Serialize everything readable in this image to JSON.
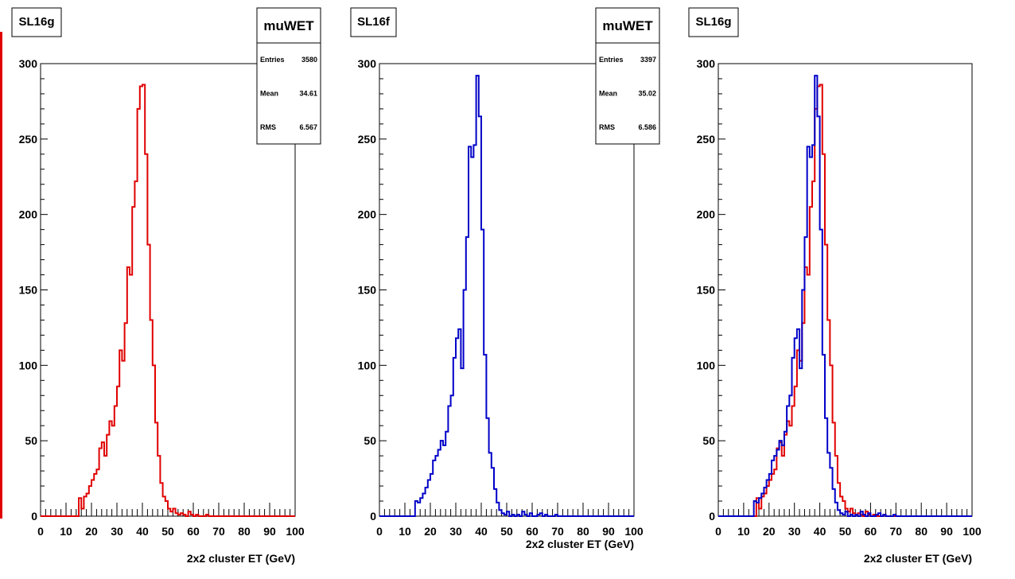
{
  "colors": {
    "sl16g": "#e00000",
    "sl16f": "#0000c8",
    "axis": "#000000",
    "edge_marker": "#e00000"
  },
  "chart_data": [
    {
      "type": "histogram",
      "title": "SL16g",
      "xlabel": "2x2 cluster ET (GeV)",
      "ylabel": "",
      "xlim": [
        0,
        100
      ],
      "ylim": [
        0,
        300
      ],
      "xticks": [
        "0",
        "10",
        "20",
        "30",
        "40",
        "50",
        "60",
        "70",
        "80",
        "90",
        "100"
      ],
      "yticks": [
        "0",
        "50",
        "100",
        "150",
        "200",
        "250",
        "300"
      ],
      "bin_width": 1,
      "stats": {
        "name": "muWET",
        "rows": [
          {
            "label": "Entries",
            "value": "3580"
          },
          {
            "label": "Mean",
            "value": "34.61"
          },
          {
            "label": "RMS",
            "value": "6.567"
          }
        ]
      },
      "series": [
        {
          "color_key": "sl16g",
          "values": [
            0,
            0,
            0,
            0,
            0,
            0,
            0,
            0,
            0,
            0,
            0,
            0,
            0,
            0,
            0,
            12,
            5,
            13,
            15,
            20,
            24,
            28,
            31,
            45,
            49,
            40,
            54,
            63,
            60,
            73,
            86,
            110,
            103,
            128,
            165,
            160,
            205,
            222,
            270,
            285,
            286,
            240,
            180,
            130,
            100,
            62,
            40,
            22,
            13,
            10,
            5,
            3,
            5,
            2,
            1,
            2,
            1,
            0,
            3,
            1,
            0,
            1,
            0,
            0,
            0,
            1,
            0,
            0,
            0,
            0,
            0,
            0,
            0,
            0,
            0,
            0,
            0,
            0,
            0,
            0,
            0,
            0,
            0,
            0,
            0,
            0,
            0,
            0,
            0,
            0,
            0,
            0,
            0,
            0,
            0,
            0,
            0,
            0,
            0,
            0
          ]
        }
      ]
    },
    {
      "type": "histogram",
      "title": "SL16f",
      "xlabel": "2x2 cluster ET (GeV)",
      "ylabel": "",
      "xlim": [
        0,
        100
      ],
      "ylim": [
        0,
        300
      ],
      "xticks": [
        "0",
        "10",
        "20",
        "30",
        "40",
        "50",
        "60",
        "70",
        "80",
        "90",
        "100"
      ],
      "yticks": [
        "0",
        "50",
        "100",
        "150",
        "200",
        "250",
        "300"
      ],
      "bin_width": 1,
      "stats": {
        "name": "muWET",
        "rows": [
          {
            "label": "Entries",
            "value": "3397"
          },
          {
            "label": "Mean",
            "value": "35.02"
          },
          {
            "label": "RMS",
            "value": "6.586"
          }
        ]
      },
      "series": [
        {
          "color_key": "sl16f",
          "values": [
            0,
            0,
            0,
            0,
            0,
            0,
            0,
            0,
            0,
            0,
            0,
            0,
            0,
            0,
            10,
            9,
            12,
            15,
            19,
            24,
            28,
            37,
            40,
            44,
            50,
            47,
            56,
            73,
            80,
            105,
            118,
            124,
            98,
            150,
            185,
            245,
            238,
            246,
            292,
            265,
            190,
            107,
            65,
            42,
            32,
            18,
            9,
            4,
            2,
            1,
            3,
            0,
            1,
            0,
            1,
            0,
            3,
            1,
            0,
            2,
            0,
            0,
            1,
            2,
            0,
            1,
            0,
            0,
            0,
            1,
            0,
            0,
            0,
            0,
            0,
            0,
            0,
            0,
            0,
            0,
            0,
            0,
            0,
            0,
            0,
            0,
            0,
            0,
            0,
            0,
            0,
            0,
            0,
            0,
            0,
            0,
            0,
            0,
            0,
            0
          ]
        }
      ]
    },
    {
      "type": "histogram",
      "title": "SL16g",
      "xlabel": "2x2 cluster ET (GeV)",
      "ylabel": "",
      "xlim": [
        0,
        100
      ],
      "ylim": [
        0,
        300
      ],
      "xticks": [
        "0",
        "10",
        "20",
        "30",
        "40",
        "50",
        "60",
        "70",
        "80",
        "90",
        "100"
      ],
      "yticks": [
        "0",
        "50",
        "100",
        "150",
        "200",
        "250",
        "300"
      ],
      "bin_width": 1,
      "series": [
        {
          "color_key": "sl16g",
          "values": [
            0,
            0,
            0,
            0,
            0,
            0,
            0,
            0,
            0,
            0,
            0,
            0,
            0,
            0,
            0,
            12,
            5,
            13,
            15,
            20,
            24,
            28,
            31,
            45,
            49,
            40,
            54,
            63,
            60,
            73,
            86,
            110,
            103,
            128,
            165,
            160,
            205,
            222,
            270,
            285,
            286,
            240,
            180,
            130,
            100,
            62,
            40,
            22,
            13,
            10,
            5,
            3,
            5,
            2,
            1,
            2,
            1,
            0,
            3,
            1,
            0,
            1,
            0,
            0,
            0,
            1,
            0,
            0,
            0,
            0,
            0,
            0,
            0,
            0,
            0,
            0,
            0,
            0,
            0,
            0,
            0,
            0,
            0,
            0,
            0,
            0,
            0,
            0,
            0,
            0,
            0,
            0,
            0,
            0,
            0,
            0,
            0,
            0,
            0,
            0
          ]
        },
        {
          "color_key": "sl16f",
          "values": [
            0,
            0,
            0,
            0,
            0,
            0,
            0,
            0,
            0,
            0,
            0,
            0,
            0,
            0,
            10,
            9,
            12,
            15,
            19,
            24,
            28,
            37,
            40,
            44,
            50,
            47,
            56,
            73,
            80,
            105,
            118,
            124,
            98,
            150,
            185,
            245,
            238,
            246,
            292,
            265,
            190,
            107,
            65,
            42,
            32,
            18,
            9,
            4,
            2,
            1,
            3,
            0,
            1,
            0,
            1,
            0,
            3,
            1,
            0,
            2,
            0,
            0,
            1,
            2,
            0,
            1,
            0,
            0,
            0,
            1,
            0,
            0,
            0,
            0,
            0,
            0,
            0,
            0,
            0,
            0,
            0,
            0,
            0,
            0,
            0,
            0,
            0,
            0,
            0,
            0,
            0,
            0,
            0,
            0,
            0,
            0,
            0,
            0,
            0,
            0
          ]
        }
      ]
    }
  ]
}
